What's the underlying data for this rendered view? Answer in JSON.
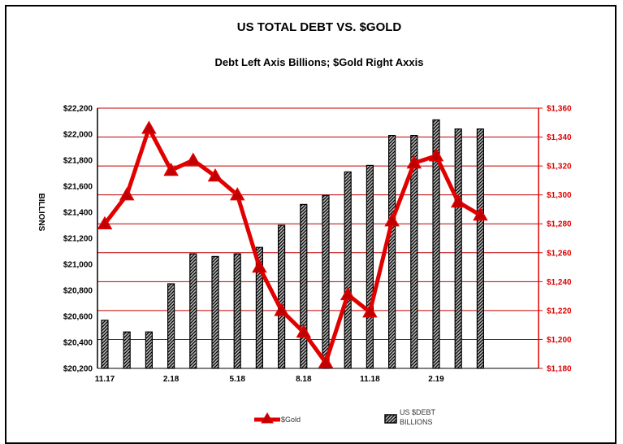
{
  "chart_data": {
    "type": "bar",
    "title": "US TOTAL DEBT VS. $GOLD",
    "subtitle": "Debt Left Axis Billions; $Gold Right Axxis",
    "ylabel": "BILLIONS",
    "y_left": {
      "ylim": [
        20200,
        22200
      ],
      "tick_labels": [
        "$20,200",
        "$20,400",
        "$20,600",
        "$20,800",
        "$21,000",
        "$21,200",
        "$21,400",
        "$21,600",
        "$21,800",
        "$22,000",
        "$22,200"
      ]
    },
    "y_right": {
      "ylim": [
        1180,
        1360
      ],
      "tick_labels": [
        "$1,180",
        "$1,200",
        "$1,220",
        "$1,240",
        "$1,260",
        "$1,280",
        "$1,300",
        "$1,320",
        "$1,340",
        "$1,360"
      ]
    },
    "x_tick_labels": [
      {
        "label": "11.17",
        "index": 0
      },
      {
        "label": "2.18",
        "index": 3
      },
      {
        "label": "5.18",
        "index": 6
      },
      {
        "label": "8.18",
        "index": 9
      },
      {
        "label": "11.18",
        "index": 12
      },
      {
        "label": "2.19",
        "index": 15
      }
    ],
    "series": [
      {
        "name": "US $DEBT BILLIONS",
        "type": "bar",
        "axis": "left",
        "values": [
          20570,
          20480,
          20480,
          20850,
          21080,
          21060,
          21080,
          21130,
          21300,
          21460,
          21530,
          21710,
          21760,
          21990,
          21990,
          22110,
          22040,
          22040
        ]
      },
      {
        "name": "$Gold",
        "type": "line",
        "axis": "right",
        "values": [
          1280,
          1300,
          1346,
          1317,
          1324,
          1313,
          1300,
          1250,
          1220,
          1205,
          1184,
          1231,
          1219,
          1282,
          1322,
          1327,
          1295,
          1286
        ]
      }
    ],
    "grid": true,
    "legend": {
      "placement": "bottom",
      "entries": [
        {
          "label": "$Gold",
          "color": "#e00000"
        },
        {
          "label_line1": "US $DEBT",
          "label_line2": "BILLIONS"
        }
      ]
    },
    "colors": {
      "gold_line": "#e00000",
      "marker_fill": "#c00000",
      "grid": "#c00000",
      "right_axis": "#e00000",
      "bar_hatch_dark": "#000000",
      "bar_hatch_light": "#bbbbbb"
    }
  }
}
